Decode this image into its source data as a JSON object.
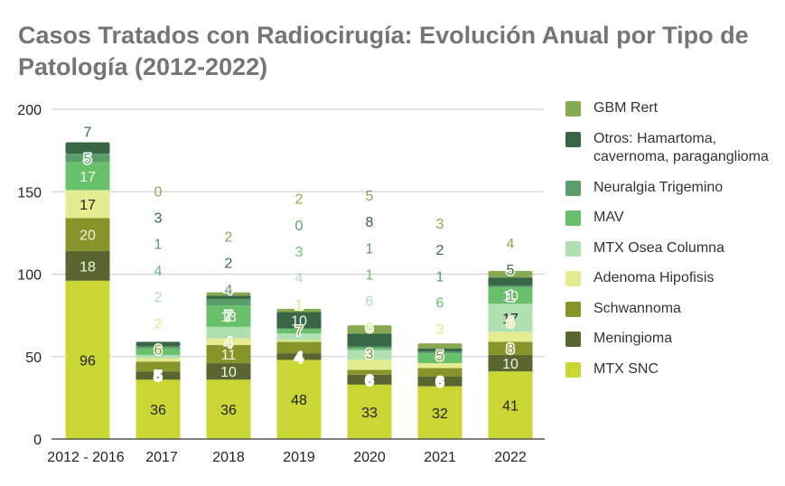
{
  "chart_data": {
    "type": "bar",
    "stacked": true,
    "title": "Casos Tratados con Radiocirugía: Evolución Anual por Tipo de Patología (2012-2022)",
    "xlabel": "",
    "ylabel": "",
    "ylim": [
      0,
      200
    ],
    "yticks": [
      0,
      50,
      100,
      150,
      200
    ],
    "grid": true,
    "legend_position": "right",
    "categories": [
      "2012 - 2016",
      "2017",
      "2018",
      "2019",
      "2020",
      "2021",
      "2022"
    ],
    "series": [
      {
        "name": "MTX SNC",
        "color": "#c9d633",
        "label_color": "#222222",
        "values": [
          96,
          36,
          36,
          48,
          33,
          32,
          41
        ],
        "labels": [
          "96",
          "36",
          "36",
          "48",
          "33",
          "32",
          "41"
        ]
      },
      {
        "name": "Meningioma",
        "color": "#5a6530",
        "label_color": "#ffffff",
        "values": [
          18,
          5,
          10,
          4,
          6,
          6,
          10
        ],
        "labels": [
          "18",
          "5",
          "10",
          "4",
          "6",
          "6",
          "10"
        ]
      },
      {
        "name": "Schwannoma",
        "color": "#86942a",
        "label_color": "#86942a",
        "values": [
          20,
          6,
          11,
          7,
          3,
          5,
          8
        ],
        "labels": [
          "20",
          "6",
          "11",
          "7",
          "3",
          "5",
          "8"
        ]
      },
      {
        "name": "Adenoma Hipofisis",
        "color": "#e5eb8f",
        "label_color": "#e0e68a",
        "values": [
          17,
          2,
          4,
          1,
          6,
          3,
          6
        ],
        "labels": [
          "17",
          "2",
          "4",
          "1",
          "6",
          "3",
          "6"
        ]
      },
      {
        "name": "MTX Osea Columna",
        "color": "#b0e0b2",
        "label_color": "#b0dfb2",
        "values": [
          0,
          2,
          7,
          4,
          6,
          0,
          17
        ],
        "labels": [
          null,
          "2",
          "7",
          "4",
          "6",
          null,
          "17"
        ]
      },
      {
        "name": "MAV",
        "color": "#69c06b",
        "label_color": "#69c06b",
        "values": [
          17,
          4,
          13,
          3,
          1,
          6,
          10
        ],
        "labels": [
          "17",
          "4",
          "13",
          "3",
          "1",
          "6",
          "10"
        ]
      },
      {
        "name": "Neuralgia Trigemino",
        "color": "#5a9d6b",
        "label_color": "#5a9d6b",
        "values": [
          5,
          1,
          4,
          0,
          1,
          1,
          1
        ],
        "labels": [
          "5",
          "1",
          "4",
          "0",
          "1",
          "1",
          "1"
        ]
      },
      {
        "name": "Otros: Hamartoma, cavernoma, paraganglioma",
        "color": "#376745",
        "label_color": "#376745",
        "values": [
          7,
          3,
          2,
          10,
          8,
          2,
          5
        ],
        "labels": [
          "7",
          "3",
          "2",
          "10",
          "8",
          "2",
          "5"
        ]
      },
      {
        "name": "GBM Rert",
        "color": "#87a94f",
        "label_color": "#87a94f",
        "values": [
          0,
          0,
          2,
          2,
          5,
          3,
          4
        ],
        "labels": [
          null,
          "0",
          "2",
          "2",
          "5",
          "3",
          "4"
        ]
      }
    ]
  },
  "legend": {
    "items": [
      {
        "label": "GBM Rert",
        "color": "#87a94f"
      },
      {
        "label": "Otros: Hamartoma, cavernoma, paraganglioma",
        "color": "#376745"
      },
      {
        "label": "Neuralgia Trigemino",
        "color": "#5a9d6b"
      },
      {
        "label": "MAV",
        "color": "#69c06b"
      },
      {
        "label": "MTX Osea Columna",
        "color": "#b0e0b2"
      },
      {
        "label": "Adenoma Hipofisis",
        "color": "#e5eb8f"
      },
      {
        "label": "Schwannoma",
        "color": "#86942a"
      },
      {
        "label": "Meningioma",
        "color": "#5a6530"
      },
      {
        "label": "MTX SNC",
        "color": "#c9d633"
      }
    ]
  }
}
